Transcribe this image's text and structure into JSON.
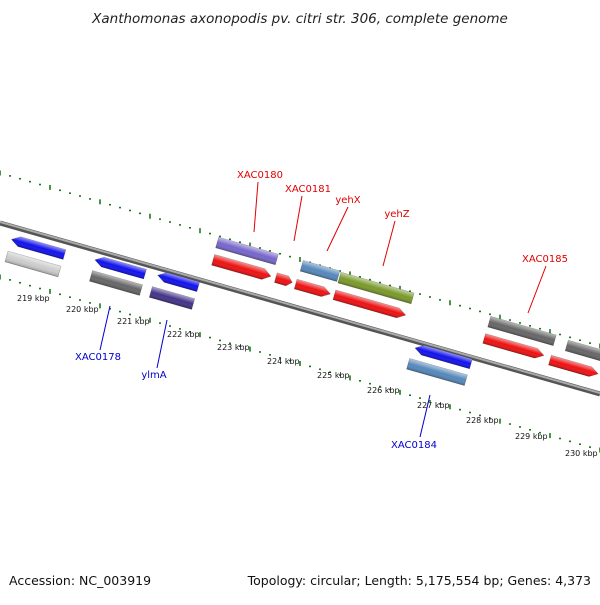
{
  "title": "Xanthomonas axonopodis pv. citri str. 306, complete genome",
  "footer": {
    "accession": "Accession: NC_003919",
    "summary": "Topology: circular; Length: 5,175,554 bp; Genes: 4,373"
  },
  "scale_labels": [
    "219 kbp",
    "220 kbp",
    "221 kbp",
    "222 kbp",
    "223 kbp",
    "224 kbp",
    "225 kbp",
    "226 kbp",
    "227 kbp",
    "228 kbp",
    "229 kbp",
    "230 kbp"
  ],
  "gene_labels": {
    "forward": [
      "XAC0180",
      "XAC0181",
      "yehX",
      "yehZ",
      "XAC0185"
    ],
    "reverse": [
      "XAC0178",
      "ylmA",
      "XAC0184"
    ]
  },
  "colors": {
    "forward_label": "#e00000",
    "reverse_label": "#0000cc",
    "backbone": "#777777",
    "tick": "#1a7a1a",
    "red_feature": "#ee1111",
    "blue_feature": "#1111ee",
    "purple_feature": "#7766cc",
    "steel_feature": "#5588bb",
    "olive_feature": "#7a9a2a",
    "dark_gray_feature": "#666666",
    "light_gray_feature": "#cccccc",
    "indigo_feature": "#443388"
  }
}
